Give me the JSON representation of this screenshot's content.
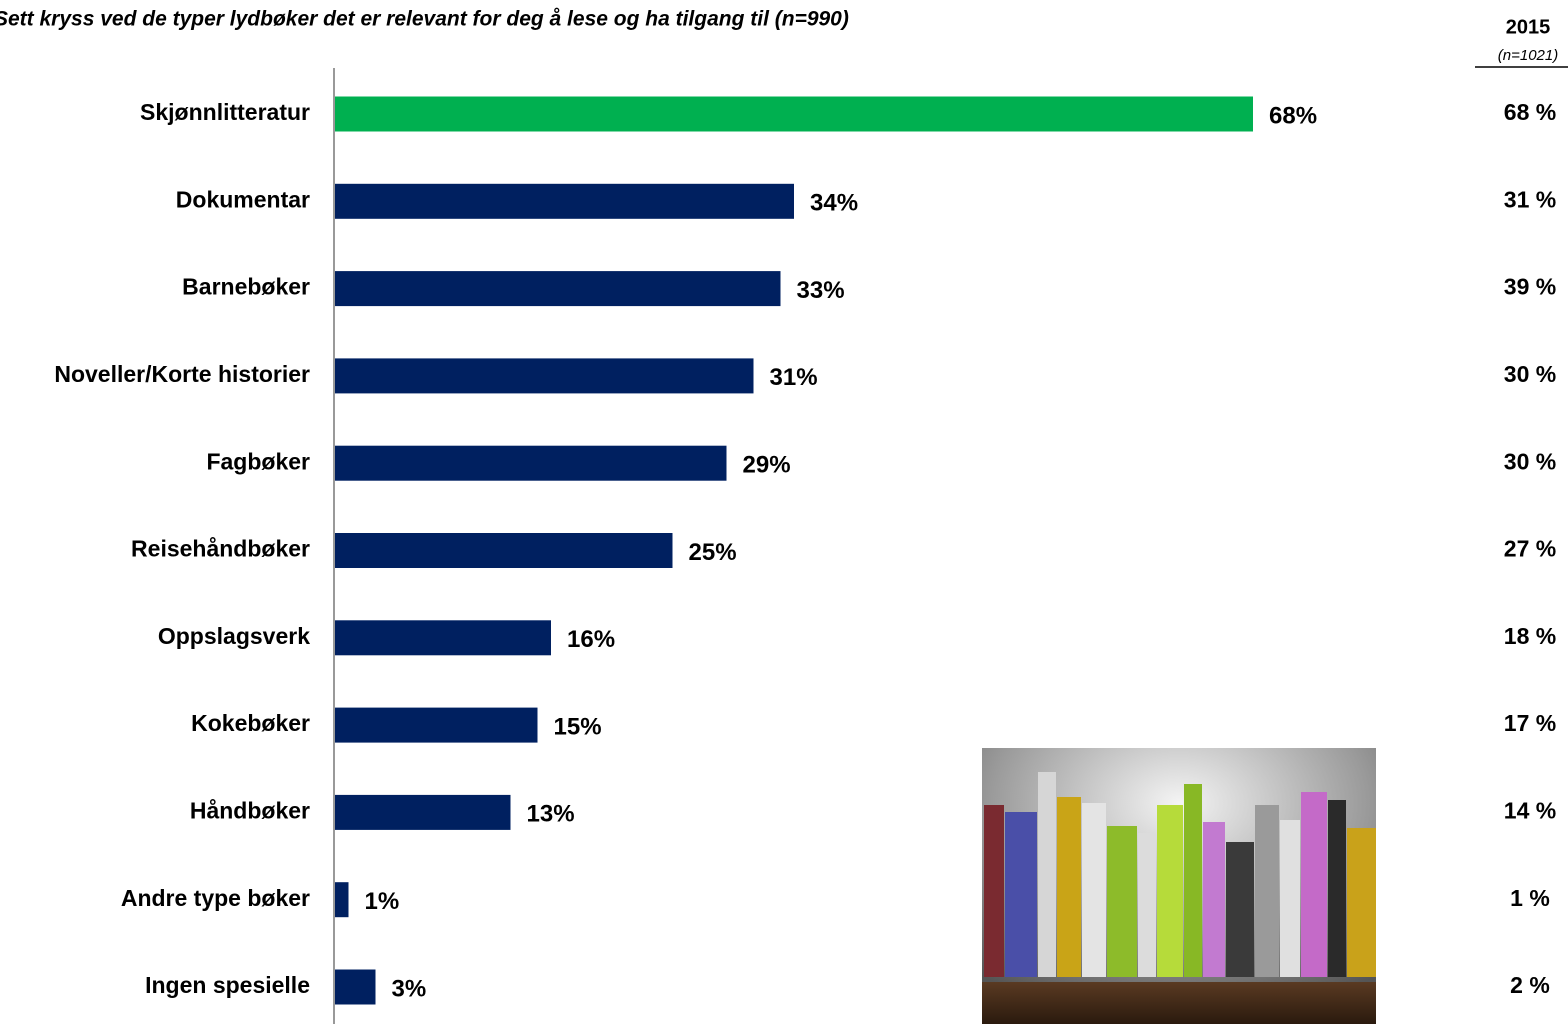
{
  "chart_data": {
    "type": "bar",
    "orientation": "horizontal",
    "title": "Sett kryss ved de typer lydbøker det er relevant for deg å lese og ha tilgang til (n=990)",
    "categories": [
      "Skjønnlitteratur",
      "Dokumentar",
      "Barnebøker",
      "Noveller/Korte historier",
      "Fagbøker",
      "Reisehåndbøker",
      "Oppslagsverk",
      "Kokebøker",
      "Håndbøker",
      "Andre type bøker",
      "Ingen spesielle"
    ],
    "values": [
      68,
      34,
      33,
      31,
      29,
      25,
      16,
      15,
      13,
      1,
      3
    ],
    "value_labels": [
      "68%",
      "34%",
      "33%",
      "31%",
      "29%",
      "25%",
      "16%",
      "15%",
      "13%",
      "1%",
      "3%"
    ],
    "colors": [
      "#00b050",
      "#002060",
      "#002060",
      "#002060",
      "#002060",
      "#002060",
      "#002060",
      "#002060",
      "#002060",
      "#002060",
      "#002060"
    ],
    "comparison": {
      "title": "2015",
      "subtitle": "(n=1021)",
      "values": [
        68,
        31,
        39,
        30,
        30,
        27,
        18,
        17,
        14,
        1,
        2
      ],
      "value_labels": [
        "68 %",
        "31 %",
        "39 %",
        "30 %",
        "30 %",
        "27 %",
        "18 %",
        "17 %",
        "14 %",
        "1 %",
        "2 %"
      ]
    }
  }
}
